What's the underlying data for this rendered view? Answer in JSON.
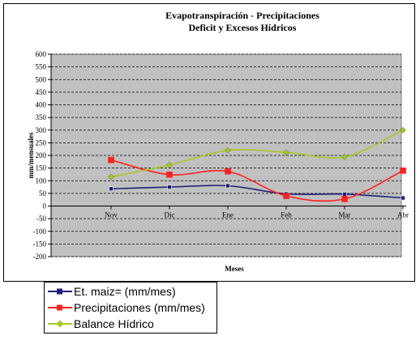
{
  "chart_data": {
    "type": "line",
    "title": "Evapotranspiración - Precipitaciones",
    "subtitle": "Deficit y Excesos Hídricos",
    "xlabel": "Meses",
    "ylabel": "mm/mensuales",
    "categories": [
      "Nov",
      "Dic",
      "Ene",
      "Feb",
      "Mar",
      "Abr"
    ],
    "ylim": [
      -200,
      600
    ],
    "yticks": [
      600,
      550,
      500,
      450,
      400,
      350,
      300,
      250,
      200,
      150,
      100,
      50,
      0,
      -50,
      -100,
      -150,
      -200
    ],
    "grid": true,
    "legend_position": "bottom-left",
    "series": [
      {
        "name": "Et. maiz= (mm/mes)",
        "color": "#1f1f7a",
        "marker": "square",
        "values": [
          68,
          75,
          80,
          48,
          47,
          32
        ]
      },
      {
        "name": "Precipitaciones (mm/mes)",
        "color": "#ff2020",
        "marker": "square",
        "values": [
          182,
          124,
          137,
          40,
          28,
          140
        ]
      },
      {
        "name": "Balance Hídrico",
        "color": "#a8c820",
        "marker": "diamond",
        "values": [
          115,
          162,
          220,
          212,
          194,
          300
        ]
      }
    ]
  }
}
